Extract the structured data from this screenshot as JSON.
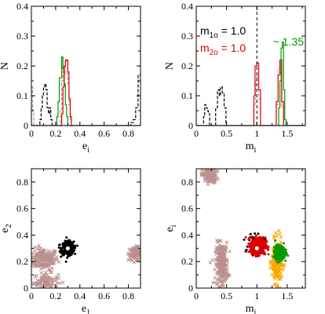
{
  "colors": {
    "black": "#000000",
    "red": "#dd0000",
    "green": "#009900",
    "orange": "#ffa500",
    "rosy": "#bc8f8f",
    "white": "#ffffff"
  },
  "chart_data": [
    {
      "id": "top-left",
      "type": "line",
      "xlabel": "e",
      "xlabel_sub": "i",
      "ylabel": "N",
      "xlim": [
        0,
        0.9
      ],
      "ylim": [
        0,
        0.4
      ],
      "xticks": [
        0,
        0.2,
        0.4,
        0.6,
        0.8
      ],
      "xtick_labels": [
        "0",
        "0.2",
        "0.4",
        "0.6",
        "0.8"
      ],
      "yticks": [
        0,
        0.1,
        0.2,
        0.3,
        0.4
      ],
      "ytick_labels": [
        "0",
        "0.1",
        "0.2",
        "0.3",
        "0.4"
      ],
      "series": [
        {
          "color": "black",
          "dash": true,
          "steps": [
            [
              0.0,
              0.0
            ],
            [
              0.06,
              0.0
            ],
            [
              0.07,
              0.02
            ],
            [
              0.08,
              0.06
            ],
            [
              0.09,
              0.1
            ],
            [
              0.1,
              0.13
            ],
            [
              0.11,
              0.14
            ],
            [
              0.12,
              0.12
            ],
            [
              0.13,
              0.06
            ],
            [
              0.14,
              0.04
            ],
            [
              0.15,
              0.06
            ],
            [
              0.16,
              0.02
            ],
            [
              0.17,
              0.0
            ],
            [
              0.55,
              0.0
            ],
            [
              0.8,
              0.0
            ],
            [
              0.82,
              0.01
            ],
            [
              0.84,
              0.02
            ],
            [
              0.86,
              0.06
            ],
            [
              0.88,
              0.17
            ],
            [
              0.9,
              0.17
            ]
          ]
        },
        {
          "color": "rosy",
          "dash": true,
          "steps": [
            [
              0.0,
              0.13
            ],
            [
              0.01,
              0.05
            ],
            [
              0.02,
              0.0
            ],
            [
              0.23,
              0.0
            ],
            [
              0.24,
              0.05
            ],
            [
              0.25,
              0.15
            ],
            [
              0.26,
              0.19
            ],
            [
              0.27,
              0.17
            ],
            [
              0.28,
              0.22
            ],
            [
              0.29,
              0.21
            ],
            [
              0.3,
              0.14
            ],
            [
              0.31,
              0.07
            ],
            [
              0.32,
              0.02
            ],
            [
              0.33,
              0.0
            ],
            [
              0.9,
              0.0
            ]
          ]
        },
        {
          "color": "green",
          "dash": false,
          "steps": [
            [
              0.0,
              0.0
            ],
            [
              0.2,
              0.0
            ],
            [
              0.21,
              0.03
            ],
            [
              0.22,
              0.08
            ],
            [
              0.23,
              0.16
            ],
            [
              0.24,
              0.16
            ],
            [
              0.25,
              0.23
            ],
            [
              0.26,
              0.19
            ],
            [
              0.27,
              0.14
            ],
            [
              0.28,
              0.07
            ],
            [
              0.29,
              0.03
            ],
            [
              0.3,
              0.0
            ],
            [
              0.9,
              0.0
            ]
          ]
        },
        {
          "color": "red",
          "dash": false,
          "steps": [
            [
              0.0,
              0.0
            ],
            [
              0.24,
              0.0
            ],
            [
              0.25,
              0.04
            ],
            [
              0.26,
              0.13
            ],
            [
              0.27,
              0.2
            ],
            [
              0.28,
              0.22
            ],
            [
              0.29,
              0.22
            ],
            [
              0.3,
              0.18
            ],
            [
              0.31,
              0.09
            ],
            [
              0.32,
              0.03
            ],
            [
              0.33,
              0.0
            ],
            [
              0.9,
              0.0
            ]
          ]
        }
      ]
    },
    {
      "id": "top-right",
      "type": "line",
      "xlabel": "m",
      "xlabel_sub": "i",
      "ylabel": "N",
      "xlim": [
        0,
        1.8
      ],
      "ylim": [
        0,
        0.4
      ],
      "xticks": [
        0,
        0.5,
        1.0,
        1.5
      ],
      "xtick_labels": [
        "0",
        "0.5",
        "1",
        "1.5"
      ],
      "yticks": [
        0,
        0.1,
        0.2,
        0.3,
        0.4
      ],
      "ytick_labels": [
        "0",
        "0.1",
        "0.2",
        "0.3",
        "0.4"
      ],
      "vline": 1.0,
      "annotations": {
        "m1": {
          "text": "m",
          "sub": "1o",
          "tail": " = 1.0"
        },
        "m2": {
          "text": "m",
          "sub": "2o",
          "tail": " = 1.0"
        },
        "approx": "~ 1.35"
      },
      "series": [
        {
          "color": "black",
          "dash": true,
          "steps": [
            [
              0.0,
              0.0
            ],
            [
              0.1,
              0.0
            ],
            [
              0.12,
              0.03
            ],
            [
              0.14,
              0.07
            ],
            [
              0.16,
              0.06
            ],
            [
              0.18,
              0.05
            ],
            [
              0.2,
              0.04
            ],
            [
              0.22,
              0.0
            ],
            [
              0.3,
              0.0
            ],
            [
              0.32,
              0.06
            ],
            [
              0.35,
              0.12
            ],
            [
              0.38,
              0.1
            ],
            [
              0.4,
              0.13
            ],
            [
              0.43,
              0.11
            ],
            [
              0.46,
              0.06
            ],
            [
              0.49,
              0.0
            ],
            [
              1.8,
              0.0
            ]
          ]
        },
        {
          "color": "rosy",
          "dash": true,
          "steps": [
            [
              0.0,
              0.0
            ],
            [
              0.92,
              0.0
            ],
            [
              0.95,
              0.07
            ],
            [
              0.98,
              0.15
            ],
            [
              1.0,
              0.17
            ],
            [
              1.03,
              0.09
            ],
            [
              1.06,
              0.0
            ],
            [
              1.3,
              0.0
            ],
            [
              1.32,
              0.07
            ],
            [
              1.35,
              0.19
            ],
            [
              1.38,
              0.18
            ],
            [
              1.41,
              0.06
            ],
            [
              1.44,
              0.0
            ],
            [
              1.8,
              0.0
            ]
          ]
        },
        {
          "color": "red",
          "dash": false,
          "steps": [
            [
              0.0,
              0.0
            ],
            [
              0.93,
              0.0
            ],
            [
              0.95,
              0.1
            ],
            [
              0.97,
              0.2
            ],
            [
              1.0,
              0.21
            ],
            [
              1.03,
              0.12
            ],
            [
              1.06,
              0.0
            ],
            [
              1.3,
              0.0
            ],
            [
              1.32,
              0.08
            ],
            [
              1.35,
              0.17
            ],
            [
              1.38,
              0.22
            ],
            [
              1.41,
              0.08
            ],
            [
              1.44,
              0.0
            ],
            [
              1.8,
              0.0
            ]
          ]
        },
        {
          "color": "green",
          "dash": false,
          "steps": [
            [
              0.0,
              0.0
            ],
            [
              1.34,
              0.0
            ],
            [
              1.36,
              0.06
            ],
            [
              1.38,
              0.15
            ],
            [
              1.4,
              0.26
            ],
            [
              1.42,
              0.28
            ],
            [
              1.44,
              0.12
            ],
            [
              1.46,
              0.02
            ],
            [
              1.48,
              0.0
            ],
            [
              1.8,
              0.0
            ]
          ]
        }
      ]
    },
    {
      "id": "bottom-left",
      "type": "scatter",
      "xlabel": "e",
      "xlabel_sub": "1",
      "ylabel": "e",
      "ylabel_sub": "2",
      "xlim": [
        0,
        0.9
      ],
      "ylim": [
        0,
        0.9
      ],
      "xticks": [
        0,
        0.2,
        0.4,
        0.6,
        0.8
      ],
      "xtick_labels": [
        "0",
        "0.2",
        "0.4",
        "0.6",
        "0.8"
      ],
      "yticks": [
        0,
        0.2,
        0.4,
        0.6,
        0.8
      ],
      "ytick_labels": [
        "0",
        "0.2",
        "0.4",
        "0.6",
        "0.8"
      ],
      "clusters": [
        {
          "color": "rosy",
          "marker": "x",
          "cx": 0.1,
          "cy": 0.22,
          "sx": 0.06,
          "sy": 0.04,
          "n": 180
        },
        {
          "color": "rosy",
          "marker": "x",
          "cx": 0.12,
          "cy": 0.05,
          "sx": 0.05,
          "sy": 0.03,
          "n": 90
        },
        {
          "color": "rosy",
          "marker": "x",
          "cx": 0.86,
          "cy": 0.26,
          "sx": 0.03,
          "sy": 0.025,
          "n": 90
        },
        {
          "color": "black",
          "marker": "dot",
          "cx": 0.3,
          "cy": 0.3,
          "sx": 0.025,
          "sy": 0.025,
          "n": 420
        }
      ],
      "center": {
        "x": 0.3,
        "y": 0.3
      }
    },
    {
      "id": "bottom-right",
      "type": "scatter",
      "xlabel": "m",
      "xlabel_sub": "i",
      "ylabel": "e",
      "ylabel_sub": "i",
      "xlim": [
        0,
        1.8
      ],
      "ylim": [
        0,
        0.9
      ],
      "xticks": [
        0,
        0.5,
        1.0,
        1.5
      ],
      "xtick_labels": [
        "0",
        "0.5",
        "1",
        "1.5"
      ],
      "yticks": [
        0,
        0.2,
        0.4,
        0.6,
        0.8
      ],
      "ytick_labels": [
        "0",
        "0.2",
        "0.4",
        "0.6",
        "0.8"
      ],
      "clusters": [
        {
          "color": "rosy",
          "marker": "x",
          "cx": 0.22,
          "cy": 0.85,
          "sx": 0.06,
          "sy": 0.03,
          "n": 110
        },
        {
          "color": "rosy",
          "marker": "x",
          "cx": 0.42,
          "cy": 0.18,
          "sx": 0.05,
          "sy": 0.08,
          "n": 220
        },
        {
          "color": "orange",
          "marker": "x",
          "cx": 1.33,
          "cy": 0.2,
          "sx": 0.04,
          "sy": 0.08,
          "n": 220
        },
        {
          "color": "black",
          "marker": "dot",
          "cx": 1.0,
          "cy": 0.32,
          "sx": 0.07,
          "sy": 0.035,
          "n": 140
        },
        {
          "color": "red",
          "marker": "dot",
          "cx": 1.02,
          "cy": 0.32,
          "sx": 0.06,
          "sy": 0.03,
          "n": 420
        },
        {
          "color": "green",
          "marker": "dot",
          "cx": 1.38,
          "cy": 0.27,
          "sx": 0.04,
          "sy": 0.025,
          "n": 380
        }
      ],
      "center": {
        "x": 1.0,
        "y": 0.3
      }
    }
  ]
}
